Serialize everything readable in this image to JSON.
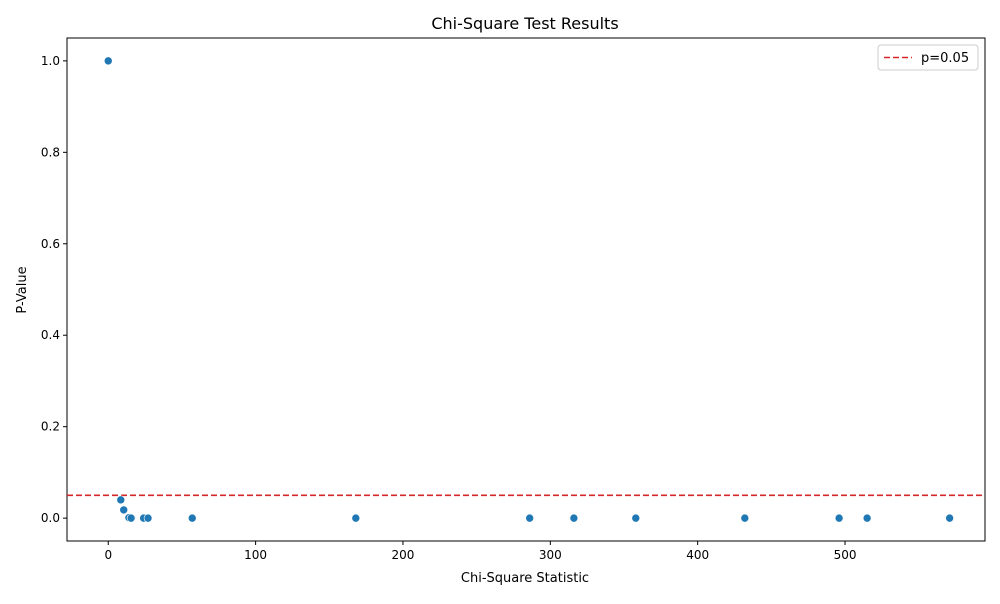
{
  "chart_data": {
    "type": "scatter",
    "title": "Chi-Square Test Results",
    "xlabel": "Chi-Square Statistic",
    "ylabel": "P-Value",
    "xlim": [
      -28,
      595
    ],
    "ylim": [
      -0.05,
      1.05
    ],
    "x_ticks": [
      0,
      100,
      200,
      300,
      400,
      500
    ],
    "x_tick_labels": [
      "0",
      "100",
      "200",
      "300",
      "400",
      "500"
    ],
    "y_ticks": [
      0.0,
      0.2,
      0.4,
      0.6,
      0.8,
      1.0
    ],
    "y_tick_labels": [
      "0.0",
      "0.2",
      "0.4",
      "0.6",
      "0.8",
      "1.0"
    ],
    "grid": false,
    "legend": {
      "placement": "top-right",
      "entries": [
        {
          "label": "p=0.05",
          "style": "dashed-line",
          "color": "#d62728"
        }
      ]
    },
    "reference_line": {
      "orientation": "horizontal",
      "y": 0.05,
      "label": "p=0.05",
      "color": "#d62728"
    },
    "point_color": "#1f77b4",
    "points": [
      {
        "x": 0,
        "y": 1.0
      },
      {
        "x": 8.5,
        "y": 0.04
      },
      {
        "x": 10.5,
        "y": 0.018
      },
      {
        "x": 14,
        "y": 0.001
      },
      {
        "x": 15.5,
        "y": 0.0
      },
      {
        "x": 24,
        "y": 0.0
      },
      {
        "x": 27,
        "y": 0.0
      },
      {
        "x": 57,
        "y": 0.0
      },
      {
        "x": 168,
        "y": 0.0
      },
      {
        "x": 286,
        "y": 0.0
      },
      {
        "x": 316,
        "y": 0.0
      },
      {
        "x": 358,
        "y": 0.0
      },
      {
        "x": 432,
        "y": 0.0
      },
      {
        "x": 496,
        "y": 0.0
      },
      {
        "x": 515,
        "y": 0.0
      },
      {
        "x": 571,
        "y": 0.0
      }
    ]
  }
}
